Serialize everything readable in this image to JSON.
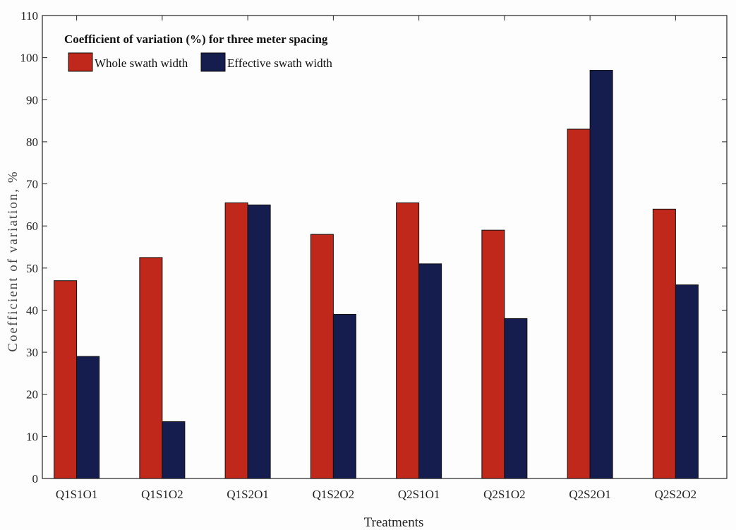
{
  "chart_data": {
    "type": "bar",
    "title": "Coefficient of variation (%) for three meter spacing",
    "xlabel": "Treatments",
    "ylabel": "Coefficient of variation, %",
    "categories": [
      "Q1S1O1",
      "Q1S1O2",
      "Q1S2O1",
      "Q1S2O2",
      "Q2S1O1",
      "Q2S1O2",
      "Q2S2O1",
      "Q2S2O2"
    ],
    "series": [
      {
        "name": "Whole swath width",
        "color": "#c0281c",
        "values": [
          47,
          52.5,
          65.5,
          58,
          65.5,
          59,
          83,
          64
        ]
      },
      {
        "name": "Effective swath width",
        "color": "#141d4e",
        "values": [
          29,
          13.5,
          65,
          39,
          51,
          38,
          97,
          46
        ]
      }
    ],
    "ylim": [
      0,
      110
    ],
    "yticks": [
      0,
      10,
      20,
      30,
      40,
      50,
      60,
      70,
      80,
      90,
      100,
      110
    ],
    "legend_position": "top-left",
    "grid": false
  }
}
